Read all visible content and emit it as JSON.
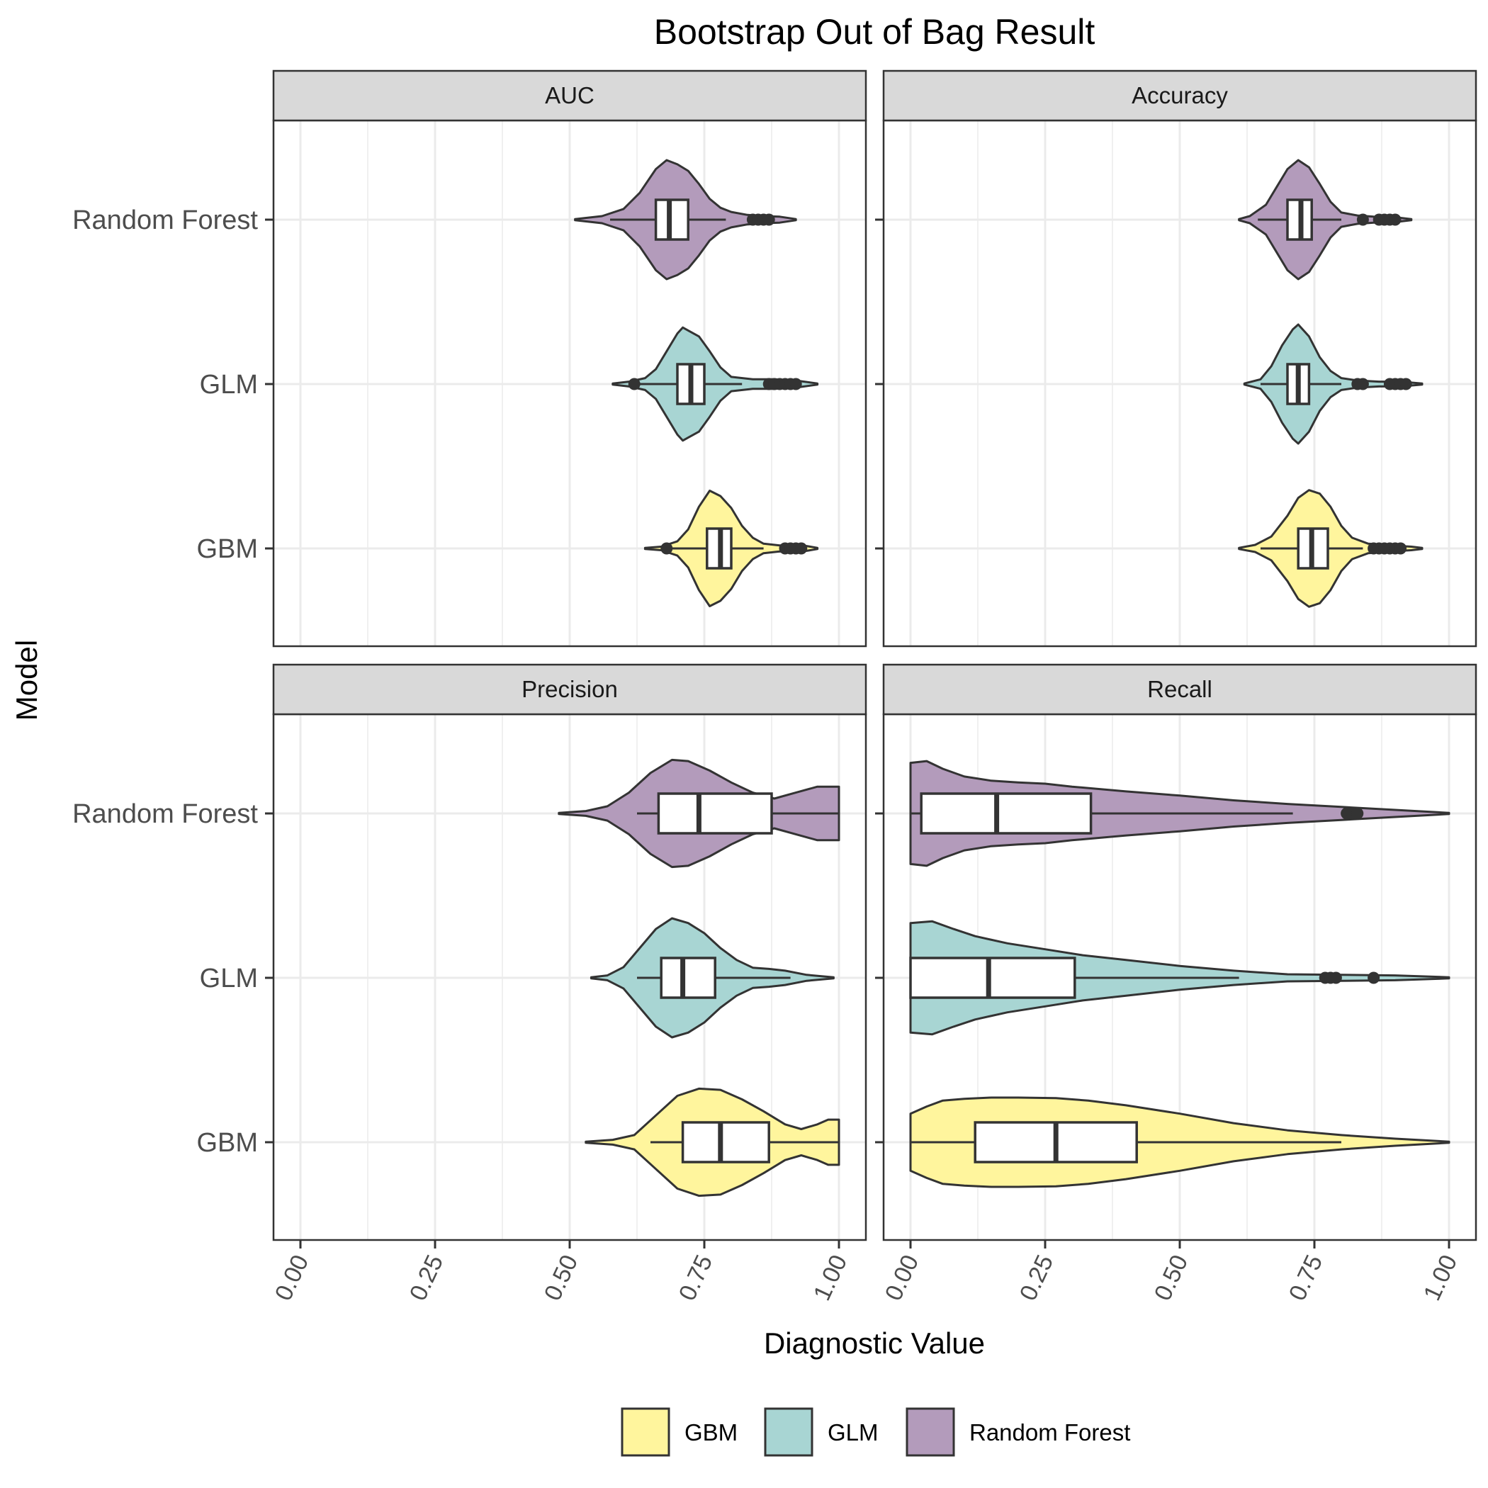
{
  "chart_data": {
    "type": "violin",
    "title": "Bootstrap Out of Bag Result",
    "xlabel": "Diagnostic Value",
    "ylabel": "Model",
    "xlim": [
      0,
      1
    ],
    "x_ticks": [
      "0.00",
      "0.25",
      "0.50",
      "0.75",
      "1.00"
    ],
    "x_tick_values": [
      0,
      0.25,
      0.5,
      0.75,
      1
    ],
    "categories": [
      "Random Forest",
      "GLM",
      "GBM"
    ],
    "legend": {
      "position": "bottom",
      "entries": [
        "GBM",
        "GLM",
        "Random Forest"
      ]
    },
    "grid": true,
    "colors": {
      "GBM": "#fff59d",
      "GLM": "#a8d5d3",
      "Random Forest": "#b39bbb",
      "outline": "#333333",
      "strip_fill": "#d9d9d9",
      "grid": "#ebebeb"
    },
    "panels": [
      {
        "facet": "AUC",
        "series": [
          {
            "model": "Random Forest",
            "min": 0.51,
            "max": 0.92,
            "q1": 0.66,
            "median": 0.685,
            "q3": 0.72,
            "whisker_low": 0.575,
            "whisker_high": 0.79,
            "outliers": [
              0.84,
              0.85,
              0.86,
              0.87
            ],
            "density": [
              [
                0.51,
                0.01
              ],
              [
                0.56,
                0.06
              ],
              [
                0.6,
                0.18
              ],
              [
                0.63,
                0.45
              ],
              [
                0.66,
                0.85
              ],
              [
                0.68,
                1.0
              ],
              [
                0.7,
                0.93
              ],
              [
                0.72,
                0.82
              ],
              [
                0.74,
                0.6
              ],
              [
                0.76,
                0.35
              ],
              [
                0.78,
                0.2
              ],
              [
                0.8,
                0.13
              ],
              [
                0.83,
                0.08
              ],
              [
                0.86,
                0.06
              ],
              [
                0.89,
                0.05
              ],
              [
                0.92,
                0.01
              ]
            ]
          },
          {
            "model": "GLM",
            "min": 0.58,
            "max": 0.96,
            "q1": 0.7,
            "median": 0.725,
            "q3": 0.75,
            "whisker_low": 0.625,
            "whisker_high": 0.82,
            "outliers": [
              0.62,
              0.87,
              0.88,
              0.89,
              0.9,
              0.91,
              0.92
            ],
            "density": [
              [
                0.58,
                0.01
              ],
              [
                0.61,
                0.04
              ],
              [
                0.64,
                0.1
              ],
              [
                0.66,
                0.25
              ],
              [
                0.68,
                0.55
              ],
              [
                0.7,
                0.85
              ],
              [
                0.71,
                0.95
              ],
              [
                0.72,
                0.9
              ],
              [
                0.74,
                0.8
              ],
              [
                0.76,
                0.55
              ],
              [
                0.78,
                0.28
              ],
              [
                0.8,
                0.12
              ],
              [
                0.84,
                0.08
              ],
              [
                0.88,
                0.08
              ],
              [
                0.92,
                0.06
              ],
              [
                0.96,
                0.01
              ]
            ]
          },
          {
            "model": "GBM",
            "min": 0.64,
            "max": 0.96,
            "q1": 0.755,
            "median": 0.78,
            "q3": 0.8,
            "whisker_low": 0.685,
            "whisker_high": 0.86,
            "outliers": [
              0.68,
              0.9,
              0.91,
              0.92,
              0.93
            ],
            "density": [
              [
                0.64,
                0.01
              ],
              [
                0.67,
                0.03
              ],
              [
                0.7,
                0.12
              ],
              [
                0.72,
                0.32
              ],
              [
                0.74,
                0.7
              ],
              [
                0.76,
                0.97
              ],
              [
                0.78,
                0.88
              ],
              [
                0.8,
                0.68
              ],
              [
                0.82,
                0.38
              ],
              [
                0.84,
                0.18
              ],
              [
                0.86,
                0.08
              ],
              [
                0.89,
                0.05
              ],
              [
                0.92,
                0.06
              ],
              [
                0.94,
                0.04
              ],
              [
                0.96,
                0.01
              ]
            ]
          }
        ]
      },
      {
        "facet": "Accuracy",
        "series": [
          {
            "model": "Random Forest",
            "min": 0.61,
            "max": 0.93,
            "q1": 0.7,
            "median": 0.725,
            "q3": 0.745,
            "whisker_low": 0.645,
            "whisker_high": 0.8,
            "outliers": [
              0.84,
              0.87,
              0.88,
              0.89,
              0.9
            ],
            "density": [
              [
                0.61,
                0.01
              ],
              [
                0.63,
                0.06
              ],
              [
                0.66,
                0.25
              ],
              [
                0.68,
                0.55
              ],
              [
                0.7,
                0.85
              ],
              [
                0.72,
                1.0
              ],
              [
                0.74,
                0.88
              ],
              [
                0.76,
                0.6
              ],
              [
                0.78,
                0.3
              ],
              [
                0.8,
                0.12
              ],
              [
                0.83,
                0.07
              ],
              [
                0.86,
                0.05
              ],
              [
                0.9,
                0.04
              ],
              [
                0.93,
                0.01
              ]
            ]
          },
          {
            "model": "GLM",
            "min": 0.62,
            "max": 0.95,
            "q1": 0.7,
            "median": 0.72,
            "q3": 0.74,
            "whisker_low": 0.65,
            "whisker_high": 0.8,
            "outliers": [
              0.83,
              0.84,
              0.89,
              0.9,
              0.91,
              0.92
            ],
            "density": [
              [
                0.62,
                0.01
              ],
              [
                0.65,
                0.08
              ],
              [
                0.67,
                0.3
              ],
              [
                0.69,
                0.65
              ],
              [
                0.71,
                0.92
              ],
              [
                0.72,
                1.0
              ],
              [
                0.74,
                0.8
              ],
              [
                0.76,
                0.45
              ],
              [
                0.78,
                0.22
              ],
              [
                0.8,
                0.1
              ],
              [
                0.83,
                0.06
              ],
              [
                0.87,
                0.04
              ],
              [
                0.91,
                0.04
              ],
              [
                0.95,
                0.01
              ]
            ]
          },
          {
            "model": "GBM",
            "min": 0.61,
            "max": 0.95,
            "q1": 0.72,
            "median": 0.745,
            "q3": 0.775,
            "whisker_low": 0.65,
            "whisker_high": 0.84,
            "outliers": [
              0.86,
              0.87,
              0.88,
              0.89,
              0.9,
              0.91
            ],
            "density": [
              [
                0.61,
                0.01
              ],
              [
                0.64,
                0.06
              ],
              [
                0.67,
                0.2
              ],
              [
                0.7,
                0.55
              ],
              [
                0.72,
                0.85
              ],
              [
                0.74,
                0.98
              ],
              [
                0.76,
                0.92
              ],
              [
                0.78,
                0.7
              ],
              [
                0.8,
                0.38
              ],
              [
                0.82,
                0.18
              ],
              [
                0.85,
                0.08
              ],
              [
                0.89,
                0.05
              ],
              [
                0.93,
                0.03
              ],
              [
                0.95,
                0.01
              ]
            ]
          }
        ]
      },
      {
        "facet": "Precision",
        "series": [
          {
            "model": "Random Forest",
            "min": 0.48,
            "max": 1.0,
            "q1": 0.665,
            "median": 0.74,
            "q3": 0.875,
            "whisker_low": 0.625,
            "whisker_high": 1.0,
            "outliers": [],
            "density": [
              [
                0.48,
                0.01
              ],
              [
                0.53,
                0.04
              ],
              [
                0.57,
                0.12
              ],
              [
                0.61,
                0.35
              ],
              [
                0.65,
                0.68
              ],
              [
                0.69,
                0.9
              ],
              [
                0.72,
                0.88
              ],
              [
                0.76,
                0.72
              ],
              [
                0.8,
                0.52
              ],
              [
                0.84,
                0.35
              ],
              [
                0.88,
                0.25
              ],
              [
                0.92,
                0.35
              ],
              [
                0.96,
                0.45
              ],
              [
                0.99,
                0.45
              ],
              [
                1.0,
                0.45
              ]
            ]
          },
          {
            "model": "GLM",
            "min": 0.54,
            "max": 0.99,
            "q1": 0.67,
            "median": 0.71,
            "q3": 0.77,
            "whisker_low": 0.625,
            "whisker_high": 0.91,
            "outliers": [],
            "density": [
              [
                0.54,
                0.01
              ],
              [
                0.57,
                0.04
              ],
              [
                0.6,
                0.18
              ],
              [
                0.63,
                0.5
              ],
              [
                0.66,
                0.82
              ],
              [
                0.69,
                1.0
              ],
              [
                0.72,
                0.92
              ],
              [
                0.75,
                0.75
              ],
              [
                0.78,
                0.5
              ],
              [
                0.81,
                0.3
              ],
              [
                0.84,
                0.17
              ],
              [
                0.87,
                0.15
              ],
              [
                0.9,
                0.12
              ],
              [
                0.94,
                0.05
              ],
              [
                0.99,
                0.01
              ]
            ]
          },
          {
            "model": "GBM",
            "min": 0.53,
            "max": 1.0,
            "q1": 0.71,
            "median": 0.78,
            "q3": 0.87,
            "whisker_low": 0.65,
            "whisker_high": 1.0,
            "outliers": [],
            "density": [
              [
                0.53,
                0.01
              ],
              [
                0.58,
                0.04
              ],
              [
                0.62,
                0.12
              ],
              [
                0.66,
                0.45
              ],
              [
                0.7,
                0.78
              ],
              [
                0.74,
                0.9
              ],
              [
                0.78,
                0.88
              ],
              [
                0.82,
                0.72
              ],
              [
                0.86,
                0.52
              ],
              [
                0.9,
                0.3
              ],
              [
                0.93,
                0.22
              ],
              [
                0.96,
                0.3
              ],
              [
                0.98,
                0.38
              ],
              [
                1.0,
                0.38
              ]
            ]
          }
        ]
      },
      {
        "facet": "Recall",
        "series": [
          {
            "model": "Random Forest",
            "min": 0.0,
            "max": 1.0,
            "q1": 0.02,
            "median": 0.16,
            "q3": 0.335,
            "whisker_low": 0.0,
            "whisker_high": 0.71,
            "outliers": [
              0.81,
              0.82,
              0.83
            ],
            "density": [
              [
                0.0,
                0.85
              ],
              [
                0.03,
                0.88
              ],
              [
                0.06,
                0.75
              ],
              [
                0.1,
                0.62
              ],
              [
                0.15,
                0.55
              ],
              [
                0.2,
                0.52
              ],
              [
                0.25,
                0.5
              ],
              [
                0.3,
                0.45
              ],
              [
                0.4,
                0.37
              ],
              [
                0.5,
                0.3
              ],
              [
                0.6,
                0.22
              ],
              [
                0.7,
                0.16
              ],
              [
                0.8,
                0.11
              ],
              [
                0.9,
                0.06
              ],
              [
                1.0,
                0.01
              ]
            ]
          },
          {
            "model": "GLM",
            "min": 0.0,
            "max": 1.0,
            "q1": 0.0,
            "median": 0.145,
            "q3": 0.305,
            "whisker_low": 0.0,
            "whisker_high": 0.61,
            "outliers": [
              0.77,
              0.78,
              0.79,
              0.86
            ],
            "density": [
              [
                0.0,
                0.92
              ],
              [
                0.04,
                0.95
              ],
              [
                0.08,
                0.82
              ],
              [
                0.12,
                0.7
              ],
              [
                0.18,
                0.58
              ],
              [
                0.25,
                0.48
              ],
              [
                0.32,
                0.38
              ],
              [
                0.4,
                0.3
              ],
              [
                0.5,
                0.2
              ],
              [
                0.6,
                0.12
              ],
              [
                0.7,
                0.06
              ],
              [
                0.8,
                0.05
              ],
              [
                0.9,
                0.04
              ],
              [
                1.0,
                0.01
              ]
            ]
          },
          {
            "model": "GBM",
            "min": 0.0,
            "max": 1.0,
            "q1": 0.12,
            "median": 0.27,
            "q3": 0.42,
            "whisker_low": 0.0,
            "whisker_high": 0.8,
            "outliers": [],
            "density": [
              [
                0.0,
                0.48
              ],
              [
                0.03,
                0.6
              ],
              [
                0.06,
                0.7
              ],
              [
                0.1,
                0.73
              ],
              [
                0.15,
                0.75
              ],
              [
                0.2,
                0.75
              ],
              [
                0.27,
                0.74
              ],
              [
                0.33,
                0.7
              ],
              [
                0.4,
                0.62
              ],
              [
                0.5,
                0.48
              ],
              [
                0.6,
                0.32
              ],
              [
                0.7,
                0.2
              ],
              [
                0.8,
                0.12
              ],
              [
                0.9,
                0.06
              ],
              [
                1.0,
                0.01
              ]
            ]
          }
        ]
      }
    ]
  }
}
